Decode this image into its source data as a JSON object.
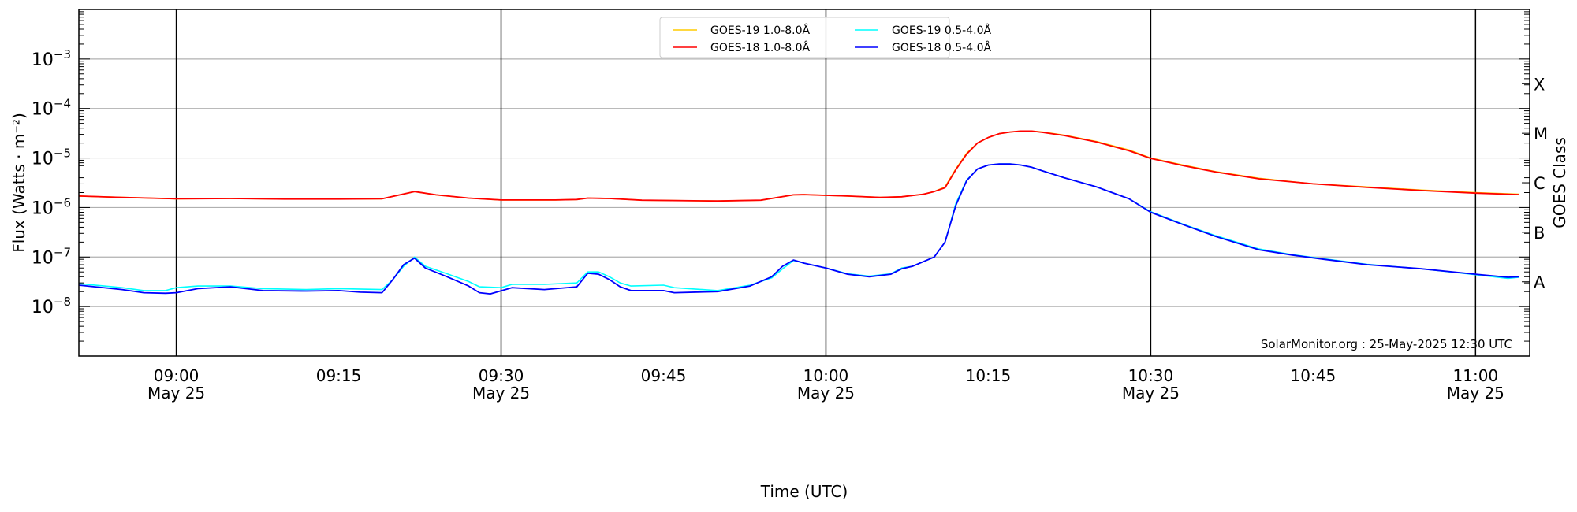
{
  "chart_data": {
    "type": "line",
    "title": "",
    "xlabel": "Time (UTC)",
    "ylabel": "Flux (Watts · m⁻²)",
    "ylabel_right": "GOES Class",
    "yscale": "log",
    "ylim": [
      1e-09,
      0.01
    ],
    "xlim": [
      "08:51",
      "11:05"
    ],
    "grid": "horizontal at decades, vertical black lines at half hours",
    "legend_placement": "top-center",
    "y_ticks": [
      {
        "base": "10",
        "exp": "−3",
        "value": 0.001
      },
      {
        "base": "10",
        "exp": "−4",
        "value": 0.0001
      },
      {
        "base": "10",
        "exp": "−5",
        "value": 1e-05
      },
      {
        "base": "10",
        "exp": "−6",
        "value": 1e-06
      },
      {
        "base": "10",
        "exp": "−7",
        "value": 1e-07
      },
      {
        "base": "10",
        "exp": "−8",
        "value": 1e-08
      }
    ],
    "class_ticks": [
      {
        "label": "X",
        "value": 0.000316
      },
      {
        "label": "M",
        "value": 3.16e-05
      },
      {
        "label": "C",
        "value": 3.16e-06
      },
      {
        "label": "B",
        "value": 3.16e-07
      },
      {
        "label": "A",
        "value": 3.16e-08
      }
    ],
    "x_ticks": [
      {
        "time": "09:00",
        "date": "May 25",
        "major": true
      },
      {
        "time": "09:15",
        "date": "",
        "major": false
      },
      {
        "time": "09:30",
        "date": "May 25",
        "major": true
      },
      {
        "time": "09:45",
        "date": "",
        "major": false
      },
      {
        "time": "10:00",
        "date": "May 25",
        "major": true
      },
      {
        "time": "10:15",
        "date": "",
        "major": false
      },
      {
        "time": "10:30",
        "date": "May 25",
        "major": true
      },
      {
        "time": "10:45",
        "date": "",
        "major": false
      },
      {
        "time": "11:00",
        "date": "May 25",
        "major": true
      }
    ],
    "annotation": "SolarMonitor.org : 25-May-2025 12:30 UTC",
    "series": [
      {
        "name": "GOES-19 1.0-8.0Å",
        "color": "#ffcc00",
        "points": [
          [
            "08:51",
            1.7e-06
          ],
          [
            "08:55",
            1.6e-06
          ],
          [
            "09:00",
            1.5e-06
          ],
          [
            "09:05",
            1.52e-06
          ],
          [
            "09:10",
            1.48e-06
          ],
          [
            "09:15",
            1.48e-06
          ],
          [
            "09:19",
            1.5e-06
          ],
          [
            "09:22",
            2.1e-06
          ],
          [
            "09:24",
            1.8e-06
          ],
          [
            "09:27",
            1.55e-06
          ],
          [
            "09:30",
            1.42e-06
          ],
          [
            "09:35",
            1.42e-06
          ],
          [
            "09:37",
            1.45e-06
          ],
          [
            "09:38",
            1.55e-06
          ],
          [
            "09:40",
            1.52e-06
          ],
          [
            "09:43",
            1.4e-06
          ],
          [
            "09:50",
            1.35e-06
          ],
          [
            "09:54",
            1.4e-06
          ],
          [
            "09:57",
            1.8e-06
          ],
          [
            "09:58",
            1.82e-06
          ],
          [
            "10:02",
            1.7e-06
          ],
          [
            "10:05",
            1.6e-06
          ],
          [
            "10:07",
            1.65e-06
          ],
          [
            "10:09",
            1.85e-06
          ],
          [
            "10:10",
            2.1e-06
          ],
          [
            "10:11",
            2.6e-06
          ],
          [
            "10:12",
            6e-06
          ],
          [
            "10:13",
            1.25e-05
          ],
          [
            "10:14",
            2e-05
          ],
          [
            "10:15",
            2.6e-05
          ],
          [
            "10:16",
            3.1e-05
          ],
          [
            "10:17",
            3.35e-05
          ],
          [
            "10:18",
            3.5e-05
          ],
          [
            "10:19",
            3.5e-05
          ],
          [
            "10:20",
            3.35e-05
          ],
          [
            "10:22",
            2.9e-05
          ],
          [
            "10:25",
            2.15e-05
          ],
          [
            "10:28",
            1.45e-05
          ],
          [
            "10:30",
            1e-05
          ],
          [
            "10:33",
            7.2e-06
          ],
          [
            "10:36",
            5.3e-06
          ],
          [
            "10:40",
            3.9e-06
          ],
          [
            "10:45",
            3e-06
          ],
          [
            "10:50",
            2.6e-06
          ],
          [
            "10:55",
            2.25e-06
          ],
          [
            "11:00",
            2e-06
          ],
          [
            "11:04",
            1.85e-06
          ]
        ]
      },
      {
        "name": "GOES-18 1.0-8.0Å",
        "color": "#ff0000",
        "points": [
          [
            "08:51",
            1.7e-06
          ],
          [
            "08:55",
            1.6e-06
          ],
          [
            "09:00",
            1.5e-06
          ],
          [
            "09:05",
            1.52e-06
          ],
          [
            "09:10",
            1.48e-06
          ],
          [
            "09:15",
            1.48e-06
          ],
          [
            "09:19",
            1.5e-06
          ],
          [
            "09:22",
            2.1e-06
          ],
          [
            "09:24",
            1.8e-06
          ],
          [
            "09:27",
            1.55e-06
          ],
          [
            "09:30",
            1.42e-06
          ],
          [
            "09:35",
            1.42e-06
          ],
          [
            "09:37",
            1.45e-06
          ],
          [
            "09:38",
            1.55e-06
          ],
          [
            "09:40",
            1.52e-06
          ],
          [
            "09:43",
            1.4e-06
          ],
          [
            "09:50",
            1.35e-06
          ],
          [
            "09:54",
            1.4e-06
          ],
          [
            "09:57",
            1.8e-06
          ],
          [
            "09:58",
            1.82e-06
          ],
          [
            "10:02",
            1.7e-06
          ],
          [
            "10:05",
            1.6e-06
          ],
          [
            "10:07",
            1.65e-06
          ],
          [
            "10:09",
            1.85e-06
          ],
          [
            "10:10",
            2.1e-06
          ],
          [
            "10:11",
            2.5e-06
          ],
          [
            "10:12",
            5.8e-06
          ],
          [
            "10:13",
            1.2e-05
          ],
          [
            "10:14",
            2e-05
          ],
          [
            "10:15",
            2.6e-05
          ],
          [
            "10:16",
            3.1e-05
          ],
          [
            "10:17",
            3.35e-05
          ],
          [
            "10:18",
            3.5e-05
          ],
          [
            "10:19",
            3.5e-05
          ],
          [
            "10:20",
            3.3e-05
          ],
          [
            "10:22",
            2.85e-05
          ],
          [
            "10:25",
            2.1e-05
          ],
          [
            "10:28",
            1.4e-05
          ],
          [
            "10:30",
            9.8e-06
          ],
          [
            "10:33",
            7e-06
          ],
          [
            "10:36",
            5.2e-06
          ],
          [
            "10:40",
            3.8e-06
          ],
          [
            "10:45",
            3e-06
          ],
          [
            "10:50",
            2.55e-06
          ],
          [
            "10:55",
            2.2e-06
          ],
          [
            "11:00",
            1.95e-06
          ],
          [
            "11:04",
            1.82e-06
          ]
        ]
      },
      {
        "name": "GOES-19 0.5-4.0Å",
        "color": "#00ffff",
        "points": [
          [
            "08:51",
            2.9e-08
          ],
          [
            "08:55",
            2.4e-08
          ],
          [
            "08:57",
            2.1e-08
          ],
          [
            "08:59",
            2.1e-08
          ],
          [
            "09:00",
            2.4e-08
          ],
          [
            "09:02",
            2.6e-08
          ],
          [
            "09:05",
            2.6e-08
          ],
          [
            "09:08",
            2.3e-08
          ],
          [
            "09:12",
            2.2e-08
          ],
          [
            "09:15",
            2.3e-08
          ],
          [
            "09:19",
            2.2e-08
          ],
          [
            "09:20",
            3.5e-08
          ],
          [
            "09:21",
            6.5e-08
          ],
          [
            "09:22",
            1e-07
          ],
          [
            "09:23",
            6.5e-08
          ],
          [
            "09:25",
            4.6e-08
          ],
          [
            "09:27",
            3.2e-08
          ],
          [
            "09:28",
            2.5e-08
          ],
          [
            "09:30",
            2.4e-08
          ],
          [
            "09:31",
            2.8e-08
          ],
          [
            "09:34",
            2.8e-08
          ],
          [
            "09:37",
            3e-08
          ],
          [
            "09:38",
            5e-08
          ],
          [
            "09:39",
            5e-08
          ],
          [
            "09:40",
            4e-08
          ],
          [
            "09:41",
            3e-08
          ],
          [
            "09:42",
            2.6e-08
          ],
          [
            "09:45",
            2.7e-08
          ],
          [
            "09:46",
            2.4e-08
          ],
          [
            "09:50",
            2.1e-08
          ],
          [
            "09:53",
            2.7e-08
          ],
          [
            "09:55",
            3.8e-08
          ],
          [
            "09:56",
            5.8e-08
          ],
          [
            "09:57",
            8.5e-08
          ],
          [
            "09:58",
            7.5e-08
          ],
          [
            "10:00",
            6e-08
          ],
          [
            "10:02",
            4.6e-08
          ],
          [
            "10:04",
            4.1e-08
          ],
          [
            "10:06",
            4.6e-08
          ],
          [
            "10:07",
            6e-08
          ],
          [
            "10:08",
            6.5e-08
          ],
          [
            "10:10",
            1e-07
          ],
          [
            "10:11",
            2e-07
          ],
          [
            "10:12",
            1.2e-06
          ],
          [
            "10:13",
            3.6e-06
          ],
          [
            "10:14",
            6e-06
          ],
          [
            "10:15",
            7.2e-06
          ],
          [
            "10:16",
            7.6e-06
          ],
          [
            "10:17",
            7.6e-06
          ],
          [
            "10:18",
            7.2e-06
          ],
          [
            "10:19",
            6.5e-06
          ],
          [
            "10:20",
            5.5e-06
          ],
          [
            "10:22",
            4e-06
          ],
          [
            "10:25",
            2.6e-06
          ],
          [
            "10:28",
            1.5e-06
          ],
          [
            "10:30",
            8.2e-07
          ],
          [
            "10:33",
            4.6e-07
          ],
          [
            "10:36",
            2.7e-07
          ],
          [
            "10:40",
            1.45e-07
          ],
          [
            "10:43",
            1.12e-07
          ],
          [
            "10:46",
            9.2e-08
          ],
          [
            "10:50",
            7.1e-08
          ],
          [
            "10:55",
            5.8e-08
          ],
          [
            "11:00",
            4.4e-08
          ],
          [
            "11:03",
            3.7e-08
          ],
          [
            "11:04",
            3.9e-08
          ]
        ]
      },
      {
        "name": "GOES-18 0.5-4.0Å",
        "color": "#0000ff",
        "points": [
          [
            "08:51",
            2.7e-08
          ],
          [
            "08:55",
            2.2e-08
          ],
          [
            "08:57",
            1.9e-08
          ],
          [
            "08:59",
            1.85e-08
          ],
          [
            "09:00",
            1.9e-08
          ],
          [
            "09:02",
            2.3e-08
          ],
          [
            "09:05",
            2.5e-08
          ],
          [
            "09:08",
            2.1e-08
          ],
          [
            "09:12",
            2.05e-08
          ],
          [
            "09:15",
            2.1e-08
          ],
          [
            "09:17",
            1.95e-08
          ],
          [
            "09:19",
            1.9e-08
          ],
          [
            "09:20",
            3.5e-08
          ],
          [
            "09:21",
            7e-08
          ],
          [
            "09:22",
            9.5e-08
          ],
          [
            "09:23",
            6e-08
          ],
          [
            "09:25",
            4e-08
          ],
          [
            "09:27",
            2.6e-08
          ],
          [
            "09:28",
            1.9e-08
          ],
          [
            "09:29",
            1.8e-08
          ],
          [
            "09:31",
            2.4e-08
          ],
          [
            "09:34",
            2.2e-08
          ],
          [
            "09:37",
            2.5e-08
          ],
          [
            "09:38",
            4.7e-08
          ],
          [
            "09:39",
            4.5e-08
          ],
          [
            "09:40",
            3.5e-08
          ],
          [
            "09:41",
            2.5e-08
          ],
          [
            "09:42",
            2.1e-08
          ],
          [
            "09:45",
            2.1e-08
          ],
          [
            "09:46",
            1.9e-08
          ],
          [
            "09:50",
            2e-08
          ],
          [
            "09:53",
            2.6e-08
          ],
          [
            "09:55",
            4e-08
          ],
          [
            "09:56",
            6.5e-08
          ],
          [
            "09:57",
            8.7e-08
          ],
          [
            "09:58",
            7.5e-08
          ],
          [
            "10:00",
            6e-08
          ],
          [
            "10:02",
            4.5e-08
          ],
          [
            "10:04",
            4e-08
          ],
          [
            "10:06",
            4.5e-08
          ],
          [
            "10:07",
            5.8e-08
          ],
          [
            "10:08",
            6.5e-08
          ],
          [
            "10:10",
            1e-07
          ],
          [
            "10:11",
            2e-07
          ],
          [
            "10:12",
            1.1e-06
          ],
          [
            "10:13",
            3.5e-06
          ],
          [
            "10:14",
            6e-06
          ],
          [
            "10:15",
            7.2e-06
          ],
          [
            "10:16",
            7.6e-06
          ],
          [
            "10:17",
            7.6e-06
          ],
          [
            "10:18",
            7.2e-06
          ],
          [
            "10:19",
            6.5e-06
          ],
          [
            "10:20",
            5.5e-06
          ],
          [
            "10:22",
            4e-06
          ],
          [
            "10:25",
            2.6e-06
          ],
          [
            "10:28",
            1.5e-06
          ],
          [
            "10:30",
            8e-07
          ],
          [
            "10:33",
            4.5e-07
          ],
          [
            "10:36",
            2.6e-07
          ],
          [
            "10:40",
            1.4e-07
          ],
          [
            "10:43",
            1.1e-07
          ],
          [
            "10:46",
            9e-08
          ],
          [
            "10:50",
            7e-08
          ],
          [
            "10:55",
            5.8e-08
          ],
          [
            "11:00",
            4.5e-08
          ],
          [
            "11:03",
            3.9e-08
          ],
          [
            "11:04",
            4e-08
          ]
        ]
      }
    ]
  }
}
